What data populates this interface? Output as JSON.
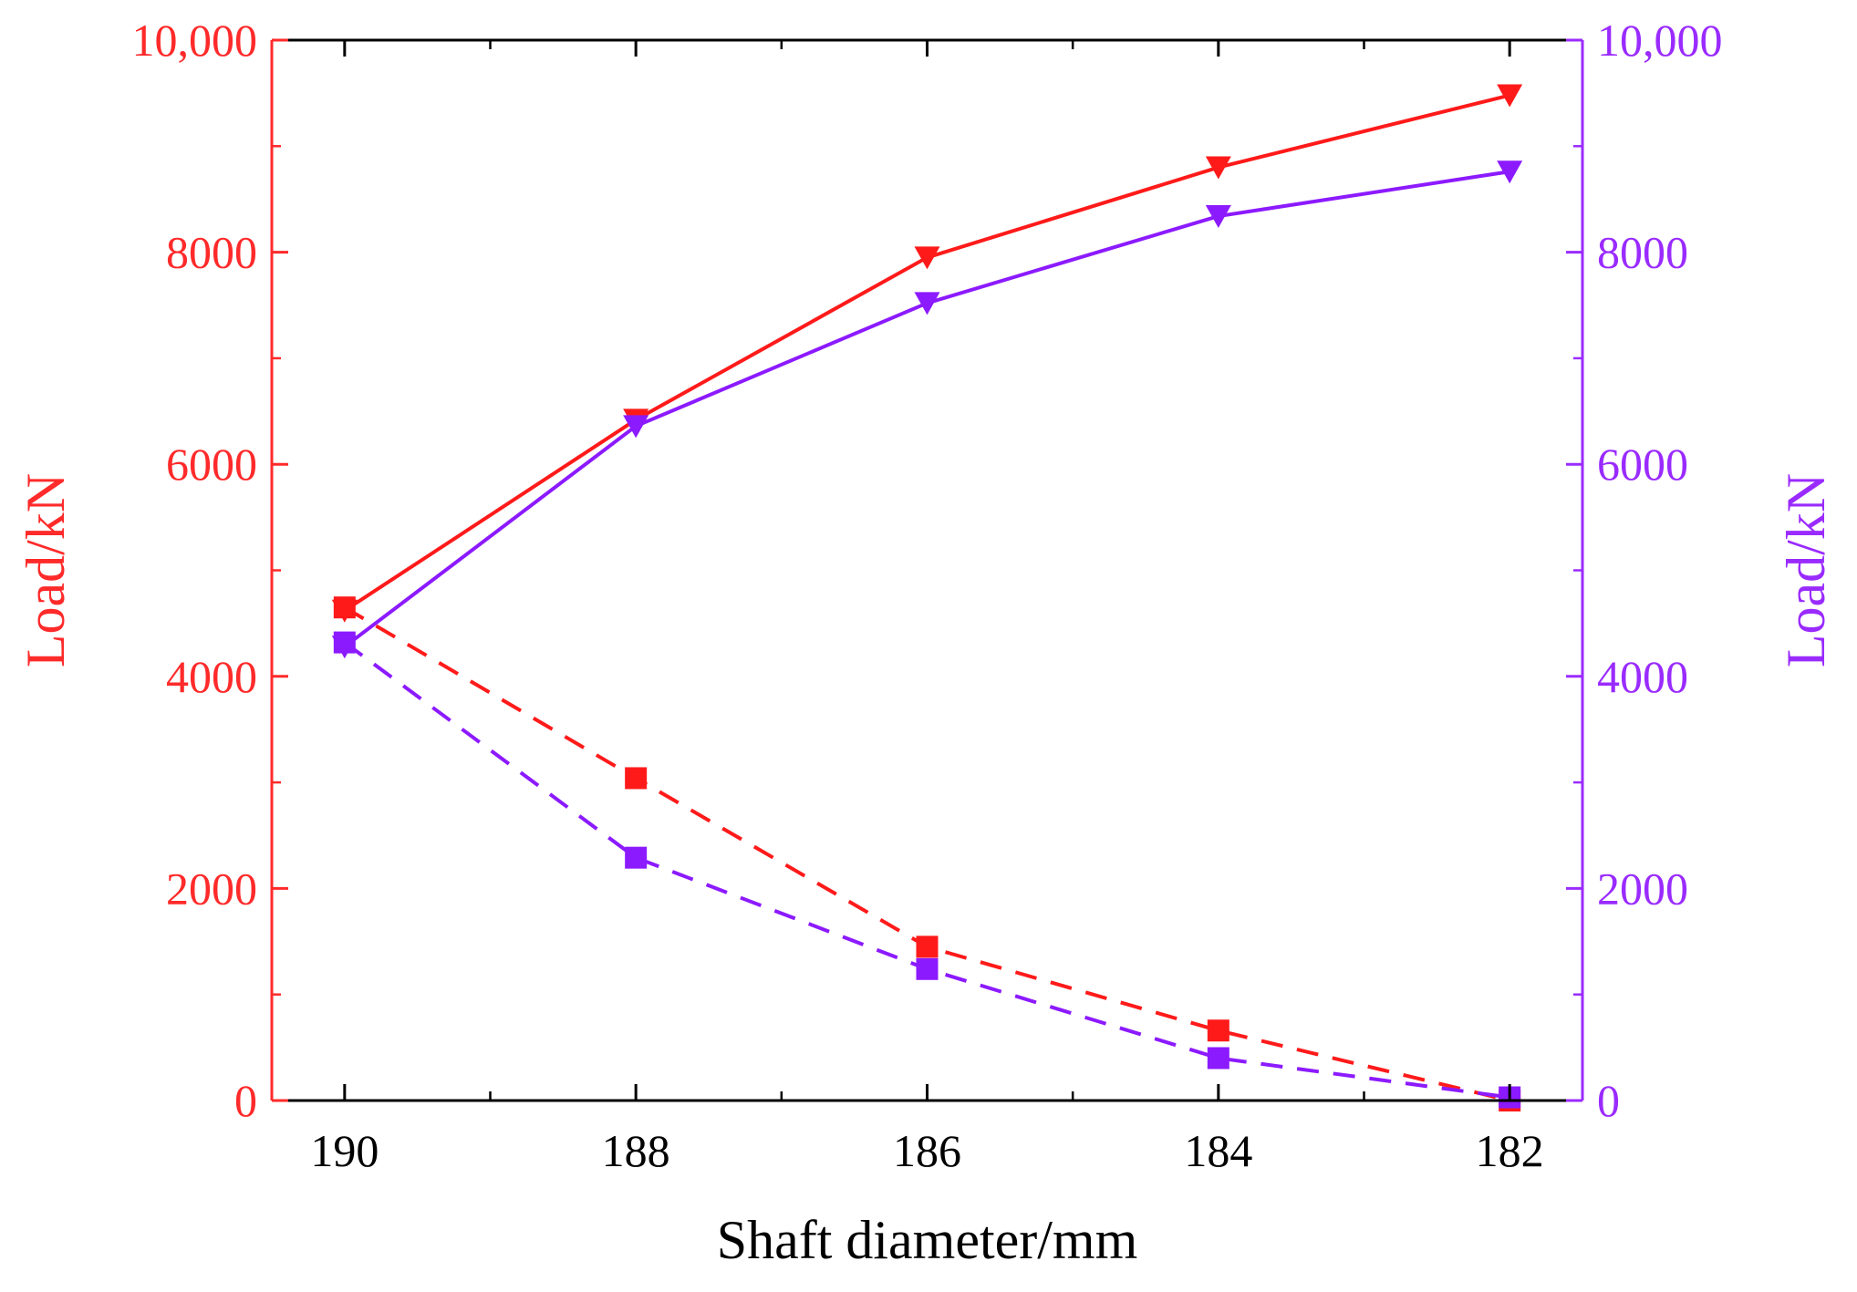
{
  "chart_data": {
    "type": "line",
    "title": "",
    "xlabel": "Shaft diameter/mm",
    "ylabel_left": "Load/kN",
    "ylabel_right": "Load/kN",
    "x": [
      190,
      188,
      186,
      184,
      182
    ],
    "x_tick_labels": [
      "190",
      "188",
      "186",
      "184",
      "182"
    ],
    "xlim": [
      190.5,
      181.5
    ],
    "ylim": [
      0,
      10000
    ],
    "y_tick_values": [
      0,
      2000,
      4000,
      6000,
      8000,
      10000
    ],
    "y_tick_labels_left": [
      "0",
      "2000",
      "4000",
      "6000",
      "8000",
      "10,000"
    ],
    "y_tick_labels_right": [
      "0",
      "2000",
      "4000",
      "6000",
      "8000",
      "10,000"
    ],
    "colors": {
      "left_axis": "#ff2a2a",
      "right_axis": "#9a2bff",
      "frame": "#000000"
    },
    "series": [
      {
        "name": "red-triangle-solid",
        "axis": "left",
        "color": "#ff1a1a",
        "marker": "triangle-down",
        "line": "solid",
        "values": [
          4620,
          6420,
          7950,
          8800,
          9480
        ]
      },
      {
        "name": "purple-triangle-solid",
        "axis": "right",
        "color": "#8c1aff",
        "marker": "triangle-down",
        "line": "solid",
        "values": [
          4280,
          6360,
          7520,
          8340,
          8760
        ]
      },
      {
        "name": "red-square-dashed",
        "axis": "left",
        "color": "#ff1a1a",
        "marker": "square",
        "line": "dashed",
        "values": [
          4650,
          3040,
          1450,
          660,
          0
        ]
      },
      {
        "name": "purple-square-dashed",
        "axis": "right",
        "color": "#8c1aff",
        "marker": "square",
        "line": "dashed",
        "values": [
          4320,
          2290,
          1240,
          400,
          30
        ]
      }
    ]
  }
}
